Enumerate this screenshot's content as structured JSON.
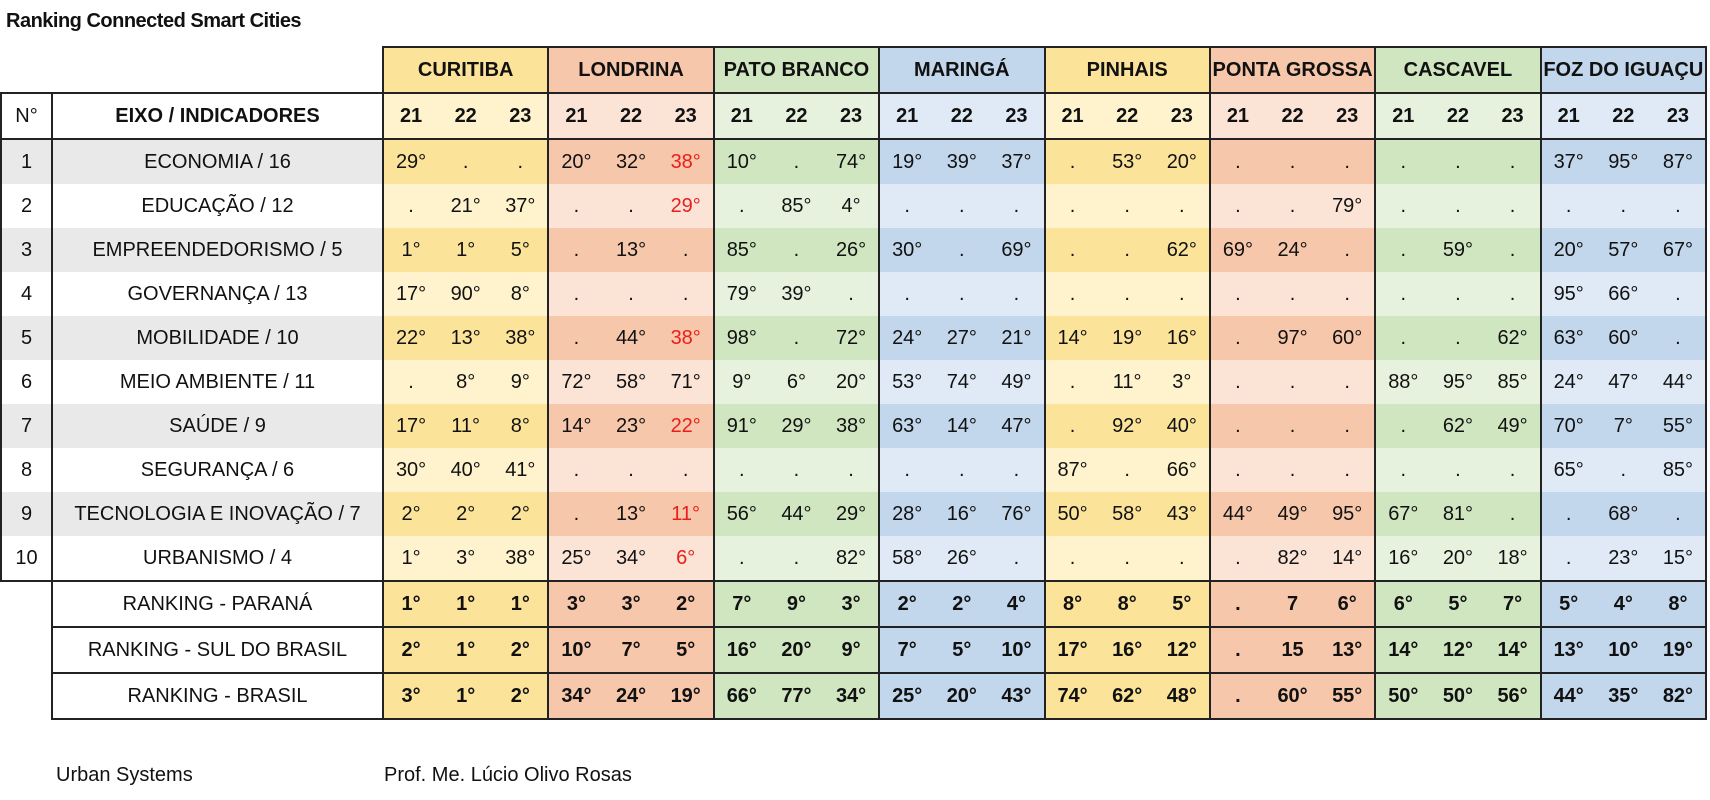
{
  "title": "Ranking Connected Smart Cities",
  "header": {
    "num_label": "N°",
    "indicator_label": "EIXO / INDICADORES"
  },
  "years": [
    "21",
    "22",
    "23"
  ],
  "cities": [
    {
      "name": "CURITIBA",
      "dark": "#fbe39a",
      "light": "#fef3cd"
    },
    {
      "name": "LONDRINA",
      "dark": "#f6c7aa",
      "light": "#fbe3d6"
    },
    {
      "name": "PATO BRANCO",
      "dark": "#cfe6c0",
      "light": "#e6f2de"
    },
    {
      "name": "MARINGÁ",
      "dark": "#c2d6ec",
      "light": "#dfeaf6"
    },
    {
      "name": "PINHAIS",
      "dark": "#fbe39a",
      "light": "#fef3cd"
    },
    {
      "name": "PONTA GROSSA",
      "dark": "#f6c7aa",
      "light": "#fbe3d6"
    },
    {
      "name": "CASCAVEL",
      "dark": "#cfe6c0",
      "light": "#e6f2de"
    },
    {
      "name": "FOZ DO IGUAÇU",
      "dark": "#c2d6ec",
      "light": "#dfeaf6"
    }
  ],
  "red_color": "#e8201c",
  "rows": [
    {
      "n": "1",
      "indicator": "ECONOMIA / 16",
      "values": [
        "29°",
        ".",
        ".",
        "20°",
        "32°",
        "38°",
        "10°",
        ".",
        "74°",
        "19°",
        "39°",
        "37°",
        ".",
        "53°",
        "20°",
        ".",
        ".",
        ".",
        ".",
        ".",
        ".",
        "37°",
        "95°",
        "87°"
      ],
      "red": [
        5
      ]
    },
    {
      "n": "2",
      "indicator": "EDUCAÇÃO / 12",
      "values": [
        ".",
        "21°",
        "37°",
        ".",
        ".",
        "29°",
        ".",
        "85°",
        "4°",
        ".",
        ".",
        ".",
        ".",
        ".",
        ".",
        ".",
        ".",
        "79°",
        ".",
        ".",
        ".",
        ".",
        ".",
        "."
      ],
      "red": [
        5
      ]
    },
    {
      "n": "3",
      "indicator": "EMPREENDEDORISMO / 5",
      "values": [
        "1°",
        "1°",
        "5°",
        ".",
        "13°",
        ".",
        "85°",
        ".",
        "26°",
        "30°",
        ".",
        "69°",
        ".",
        ".",
        "62°",
        "69°",
        "24°",
        ".",
        ".",
        "59°",
        ".",
        "20°",
        "57°",
        "67°"
      ],
      "red": []
    },
    {
      "n": "4",
      "indicator": "GOVERNANÇA / 13",
      "values": [
        "17°",
        "90°",
        "8°",
        ".",
        ".",
        ".",
        "79°",
        "39°",
        ".",
        ".",
        ".",
        ".",
        ".",
        ".",
        ".",
        ".",
        ".",
        ".",
        ".",
        ".",
        ".",
        "95°",
        "66°",
        "."
      ],
      "red": []
    },
    {
      "n": "5",
      "indicator": "MOBILIDADE / 10",
      "values": [
        "22°",
        "13°",
        "38°",
        ".",
        "44°",
        "38°",
        "98°",
        ".",
        "72°",
        "24°",
        "27°",
        "21°",
        "14°",
        "19°",
        "16°",
        ".",
        "97°",
        "60°",
        ".",
        ".",
        "62°",
        "63°",
        "60°",
        "."
      ],
      "red": [
        5
      ]
    },
    {
      "n": "6",
      "indicator": "MEIO AMBIENTE / 11",
      "values": [
        ".",
        "8°",
        "9°",
        "72°",
        "58°",
        "71°",
        "9°",
        "6°",
        "20°",
        "53°",
        "74°",
        "49°",
        ".",
        "11°",
        "3°",
        ".",
        ".",
        ".",
        "88°",
        "95°",
        "85°",
        "24°",
        "47°",
        "44°"
      ],
      "red": []
    },
    {
      "n": "7",
      "indicator": "SAÚDE / 9",
      "values": [
        "17°",
        "11°",
        "8°",
        "14°",
        "23°",
        "22°",
        "91°",
        "29°",
        "38°",
        "63°",
        "14°",
        "47°",
        ".",
        "92°",
        "40°",
        ".",
        ".",
        ".",
        ".",
        "62°",
        "49°",
        "70°",
        "7°",
        "55°"
      ],
      "red": [
        5
      ]
    },
    {
      "n": "8",
      "indicator": "SEGURANÇA / 6",
      "values": [
        "30°",
        "40°",
        "41°",
        ".",
        ".",
        ".",
        ".",
        ".",
        ".",
        ".",
        ".",
        ".",
        "87°",
        ".",
        "66°",
        ".",
        ".",
        ".",
        ".",
        ".",
        ".",
        "65°",
        ".",
        "85°"
      ],
      "red": []
    },
    {
      "n": "9",
      "indicator": "TECNOLOGIA E INOVAÇÃO / 7",
      "values": [
        "2°",
        "2°",
        "2°",
        ".",
        "13°",
        "11°",
        "56°",
        "44°",
        "29°",
        "28°",
        "16°",
        "76°",
        "50°",
        "58°",
        "43°",
        "44°",
        "49°",
        "95°",
        "67°",
        "81°",
        ".",
        ".",
        "68°",
        "."
      ],
      "red": [
        5
      ]
    },
    {
      "n": "10",
      "indicator": "URBANISMO / 4",
      "values": [
        "1°",
        "3°",
        "38°",
        "25°",
        "34°",
        "6°",
        ".",
        ".",
        "82°",
        "58°",
        "26°",
        ".",
        ".",
        ".",
        ".",
        ".",
        "82°",
        "14°",
        "16°",
        "20°",
        "18°",
        ".",
        "23°",
        "15°"
      ],
      "red": [
        5
      ]
    }
  ],
  "rankings": [
    {
      "label": "RANKING - PARANÁ",
      "values": [
        "1°",
        "1°",
        "1°",
        "3°",
        "3°",
        "2°",
        "7°",
        "9°",
        "3°",
        "2°",
        "2°",
        "4°",
        "8°",
        "8°",
        "5°",
        ".",
        "7",
        "6°",
        "6°",
        "5°",
        "7°",
        "5°",
        "4°",
        "8°"
      ]
    },
    {
      "label": "RANKING - SUL DO BRASIL",
      "values": [
        "2°",
        "1°",
        "2°",
        "10°",
        "7°",
        "5°",
        "16°",
        "20°",
        "9°",
        "7°",
        "5°",
        "10°",
        "17°",
        "16°",
        "12°",
        ".",
        "15",
        "13°",
        "14°",
        "12°",
        "14°",
        "13°",
        "10°",
        "19°"
      ]
    },
    {
      "label": "RANKING - BRASIL",
      "values": [
        "3°",
        "1°",
        "2°",
        "34°",
        "24°",
        "19°",
        "66°",
        "77°",
        "34°",
        "25°",
        "20°",
        "43°",
        "74°",
        "62°",
        "48°",
        ".",
        "60°",
        "55°",
        "50°",
        "50°",
        "56°",
        "44°",
        "35°",
        "82°"
      ]
    }
  ],
  "footer": {
    "left": "Urban Systems",
    "right": "Prof. Me. Lúcio Olivo Rosas"
  }
}
